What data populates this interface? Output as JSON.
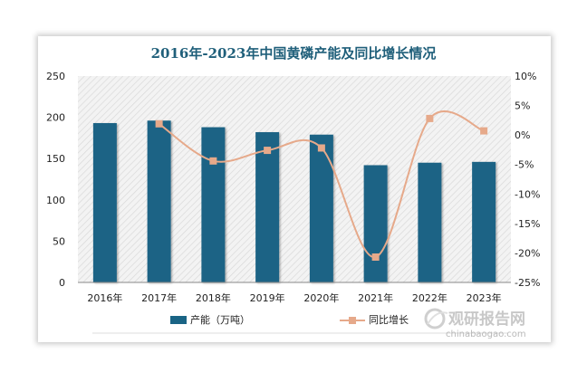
{
  "chart_data": {
    "type": "bar",
    "title": "2016年-2023年中国黄磷产能及同比增长情况",
    "categories": [
      "2016年",
      "2017年",
      "2018年",
      "2019年",
      "2020年",
      "2021年",
      "2022年",
      "2023年"
    ],
    "series": [
      {
        "name": "产能（万吨）",
        "type": "bar",
        "axis": "left",
        "color": "#1a6485",
        "values": [
          193,
          196,
          188,
          182,
          179,
          142,
          145,
          146
        ]
      },
      {
        "name": "同比增长",
        "type": "line",
        "axis": "right",
        "color": "#e6a98a",
        "values": [
          null,
          1.9,
          -4.4,
          -2.6,
          -2.2,
          -20.7,
          2.8,
          0.7
        ]
      }
    ],
    "y_left": {
      "min": 0,
      "max": 250,
      "ticks": [
        0,
        50,
        100,
        150,
        200,
        250
      ]
    },
    "y_right": {
      "min": -25,
      "max": 10,
      "ticks": [
        "-25%",
        "-20%",
        "-15%",
        "-10%",
        "-5%",
        "0%",
        "5%",
        "10%"
      ]
    },
    "grid": false,
    "legend": "bottom"
  },
  "watermark": {
    "text_cn": "观研报告网",
    "text_en": "chinabaogao.com"
  }
}
